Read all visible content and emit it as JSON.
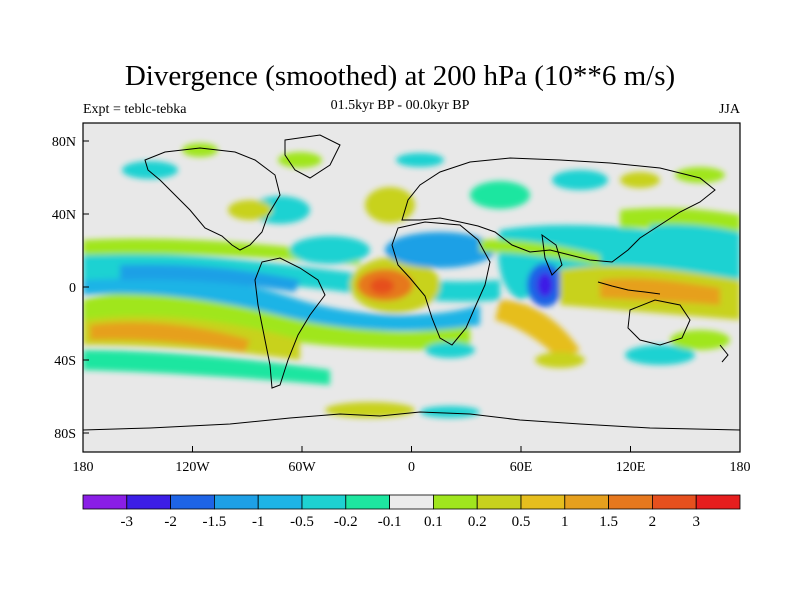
{
  "title": "Divergence (smoothed) at 200 hPa (10**6 m/s)",
  "subtitle_left": "Expt = teblc-tebka",
  "subtitle_center": "01.5kyr BP - 00.0kyr BP",
  "subtitle_right": "JJA",
  "colors": {
    "background_field": "#e8e8e8",
    "coast": "#000000",
    "frame": "#000000"
  },
  "x_ticks": [
    "180",
    "120W",
    "60W",
    "0",
    "60E",
    "120E",
    "180"
  ],
  "y_ticks": [
    "80N",
    "40N",
    "0",
    "40S",
    "80S"
  ],
  "colorbar": {
    "colors": [
      "#8a1ee6",
      "#3c1ee6",
      "#1e64e6",
      "#1ea0e6",
      "#1eb4e6",
      "#1ed2d2",
      "#1ee6a0",
      "#ececec",
      "#a0e61e",
      "#c8d21e",
      "#e6be1e",
      "#e6a01e",
      "#e6781e",
      "#e6501e",
      "#e61e1e"
    ],
    "labels": [
      "-3",
      "-2",
      "-1.5",
      "-1",
      "-0.5",
      "-0.2",
      "-0.1",
      "0.1",
      "0.2",
      "0.5",
      "1",
      "1.5",
      "2",
      "3"
    ]
  }
}
